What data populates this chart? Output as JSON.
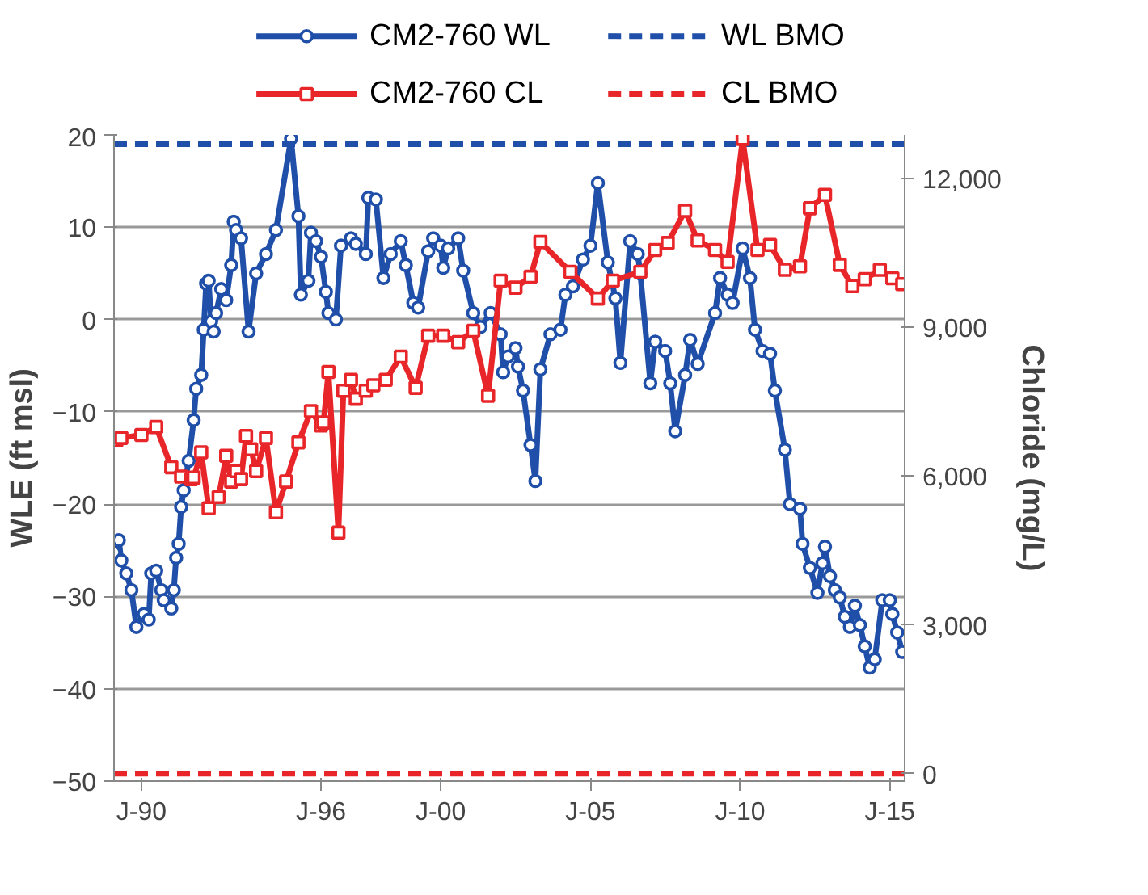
{
  "chart_data": {
    "type": "line",
    "ylabel": "WLE (ft msl)",
    "y2label": "Chloride (mg/L)",
    "xlim": [
      "1989-02",
      "2015-07"
    ],
    "xticks": [
      {
        "value": "1990-01",
        "label": "J-90"
      },
      {
        "value": "1996-01",
        "label": "J-96"
      },
      {
        "value": "2000-01",
        "label": "J-00"
      },
      {
        "value": "2005-01",
        "label": "J-05"
      },
      {
        "value": "2010-01",
        "label": "J-10"
      },
      {
        "value": "2015-01",
        "label": "J-15"
      }
    ],
    "ylim": [
      -50,
      20
    ],
    "yticks": [
      -50,
      -40,
      -30,
      -20,
      -10,
      0,
      10,
      20
    ],
    "y2lim": [
      -150,
      12880
    ],
    "y2ticks": [
      0,
      {
        "value": 3000,
        "label": "3,000"
      },
      {
        "value": 6000,
        "label": "6,000"
      },
      {
        "value": 9000,
        "label": "9,000"
      },
      {
        "value": 12000,
        "label": "12,000"
      }
    ],
    "grid": "y",
    "legend": "top",
    "series": [
      {
        "name": "CM2-760 WL",
        "color": "#1f4fa8",
        "marker": "circle",
        "line_style": "solid",
        "x": [
          "1989-02",
          "1989-04",
          "1989-05",
          "1989-07",
          "1989-09",
          "1989-11",
          "1990-02",
          "1990-04",
          "1990-05",
          "1990-07",
          "1990-09",
          "1990-10",
          "1991-01",
          "1991-02",
          "1991-03",
          "1991-04",
          "1991-05",
          "1991-06",
          "1991-08",
          "1991-10",
          "1991-11",
          "1992-01",
          "1992-02",
          "1992-03",
          "1992-04",
          "1992-05",
          "1992-06",
          "1992-07",
          "1992-09",
          "1992-11",
          "1993-01",
          "1993-02",
          "1993-03",
          "1993-05",
          "1993-08",
          "1993-11",
          "1994-03",
          "1994-07",
          "1995-01",
          "1995-04",
          "1995-05",
          "1995-08",
          "1995-09",
          "1995-11",
          "1996-01",
          "1996-03",
          "1996-04",
          "1996-07",
          "1996-09",
          "1997-01",
          "1997-03",
          "1997-07",
          "1997-08",
          "1997-11",
          "1998-02",
          "1998-05",
          "1998-09",
          "1998-11",
          "1999-02",
          "1999-04",
          "1999-08",
          "1999-10",
          "2000-01",
          "2000-02",
          "2000-04",
          "2000-08",
          "2000-10",
          "2001-02",
          "2001-05",
          "2001-09",
          "2002-01",
          "2002-02",
          "2002-04",
          "2002-07",
          "2002-08",
          "2002-10",
          "2003-01",
          "2003-03",
          "2003-05",
          "2003-09",
          "2004-01",
          "2004-03",
          "2004-06",
          "2004-10",
          "2005-01",
          "2005-04",
          "2005-08",
          "2005-11",
          "2006-01",
          "2006-05",
          "2006-08",
          "2006-09",
          "2007-01",
          "2007-03",
          "2007-07",
          "2007-09",
          "2007-11",
          "2008-03",
          "2008-05",
          "2008-08",
          "2009-03",
          "2009-05",
          "2009-08",
          "2009-10",
          "2010-02",
          "2010-05",
          "2010-07",
          "2010-10",
          "2011-01",
          "2011-03",
          "2011-07",
          "2011-09",
          "2012-01",
          "2012-02",
          "2012-05",
          "2012-08",
          "2012-10",
          "2012-11",
          "2013-01",
          "2013-03",
          "2013-05",
          "2013-07",
          "2013-09",
          "2013-11",
          "2014-01",
          "2014-03",
          "2014-05",
          "2014-07",
          "2014-10",
          "2015-01",
          "2015-02",
          "2015-04",
          "2015-06"
        ],
        "values": [
          -25.2,
          -23.9,
          -26.1,
          -27.5,
          -29.3,
          -33.3,
          -31.9,
          -32.5,
          -27.5,
          -27.2,
          -29.3,
          -30.4,
          -31.3,
          -29.3,
          -25.8,
          -24.3,
          -20.3,
          -18.5,
          -15.3,
          -10.9,
          -7.5,
          -6.0,
          -1.1,
          3.9,
          4.2,
          -0.2,
          -1.3,
          0.7,
          3.3,
          2.1,
          5.9,
          10.6,
          9.7,
          8.8,
          -1.3,
          5.0,
          7.1,
          9.7,
          19.6,
          11.2,
          2.7,
          4.2,
          9.4,
          8.5,
          6.8,
          3.0,
          0.7,
          0.0,
          8.0,
          8.8,
          8.2,
          7.1,
          13.2,
          13.0,
          4.5,
          7.1,
          8.5,
          5.9,
          1.8,
          1.3,
          7.4,
          8.8,
          8.0,
          5.6,
          7.7,
          8.8,
          5.3,
          0.7,
          -0.8,
          0.7,
          -1.6,
          -5.7,
          -4.0,
          -3.1,
          -5.1,
          -7.7,
          -13.6,
          -17.5,
          -5.4,
          -1.6,
          -1.1,
          2.7,
          3.6,
          6.5,
          8.0,
          14.8,
          6.2,
          2.3,
          -4.7,
          8.5,
          7.1,
          5.0,
          -6.9,
          -2.4,
          -3.4,
          -6.9,
          -12.1,
          -6.0,
          -2.2,
          -4.8,
          0.7,
          4.5,
          2.7,
          1.8,
          7.7,
          4.5,
          -1.1,
          -3.4,
          -3.7,
          -7.7,
          -14.1,
          -20.0,
          -20.5,
          -24.3,
          -26.9,
          -29.6,
          -26.4,
          -24.6,
          -27.8,
          -29.3,
          -30.1,
          -32.2,
          -33.3,
          -31.0,
          -33.1,
          -35.4,
          -37.7,
          -36.8,
          -30.4,
          -30.4,
          -31.9,
          -33.9,
          -36.0
        ]
      },
      {
        "name": "WL BMO",
        "color": "#1f4fa8",
        "marker": "none",
        "line_style": "dashed",
        "x": [
          "1989-02",
          "2015-07"
        ],
        "values": [
          19,
          19
        ]
      },
      {
        "name": "CM2-760 CL",
        "color": "#e8262a",
        "marker": "square",
        "line_style": "solid",
        "axis": "y2",
        "x": [
          "1989-03",
          "1989-05",
          "1990-01",
          "1990-07",
          "1991-01",
          "1991-05",
          "1991-09",
          "1991-10",
          "1992-01",
          "1992-04",
          "1992-08",
          "1992-11",
          "1993-01",
          "1993-03",
          "1993-05",
          "1993-07",
          "1993-09",
          "1993-11",
          "1994-03",
          "1994-07",
          "1994-11",
          "1995-04",
          "1995-09",
          "1996-01",
          "1996-02",
          "1996-04",
          "1996-08",
          "1996-10",
          "1997-01",
          "1997-03",
          "1997-07",
          "1997-10",
          "1998-03",
          "1998-09",
          "1999-03",
          "1999-08",
          "2000-02",
          "2000-08",
          "2001-02",
          "2001-08",
          "2002-01",
          "2002-07",
          "2003-01",
          "2003-05",
          "2004-05",
          "2005-04",
          "2005-10",
          "2006-09",
          "2007-03",
          "2007-08",
          "2008-03",
          "2008-08",
          "2009-03",
          "2009-08",
          "2010-02",
          "2010-08",
          "2011-01",
          "2011-07",
          "2012-01",
          "2012-05",
          "2012-11",
          "2013-05",
          "2013-10",
          "2014-03",
          "2014-09",
          "2015-02",
          "2015-06"
        ],
        "values": [
          6720,
          6770,
          6830,
          6990,
          6180,
          5990,
          5940,
          5970,
          6480,
          5350,
          5580,
          6410,
          5890,
          6100,
          5940,
          6810,
          6540,
          6100,
          6770,
          5270,
          5890,
          6680,
          7310,
          7020,
          7080,
          8100,
          4860,
          7720,
          7940,
          7560,
          7720,
          7830,
          7940,
          8410,
          7780,
          8830,
          8830,
          8700,
          8930,
          7620,
          9940,
          9800,
          10020,
          10720,
          10120,
          9580,
          9940,
          10120,
          10560,
          10700,
          11350,
          10750,
          10560,
          10320,
          12800,
          10560,
          10660,
          10160,
          10230,
          11400,
          11670,
          10260,
          9830,
          9970,
          10160,
          9990,
          9870
        ]
      },
      {
        "name": "CL BMO",
        "color": "#e8262a",
        "marker": "none",
        "line_style": "dashed",
        "axis": "y2",
        "x": [
          "1989-02",
          "2015-07"
        ],
        "values": [
          0,
          0
        ]
      }
    ]
  }
}
